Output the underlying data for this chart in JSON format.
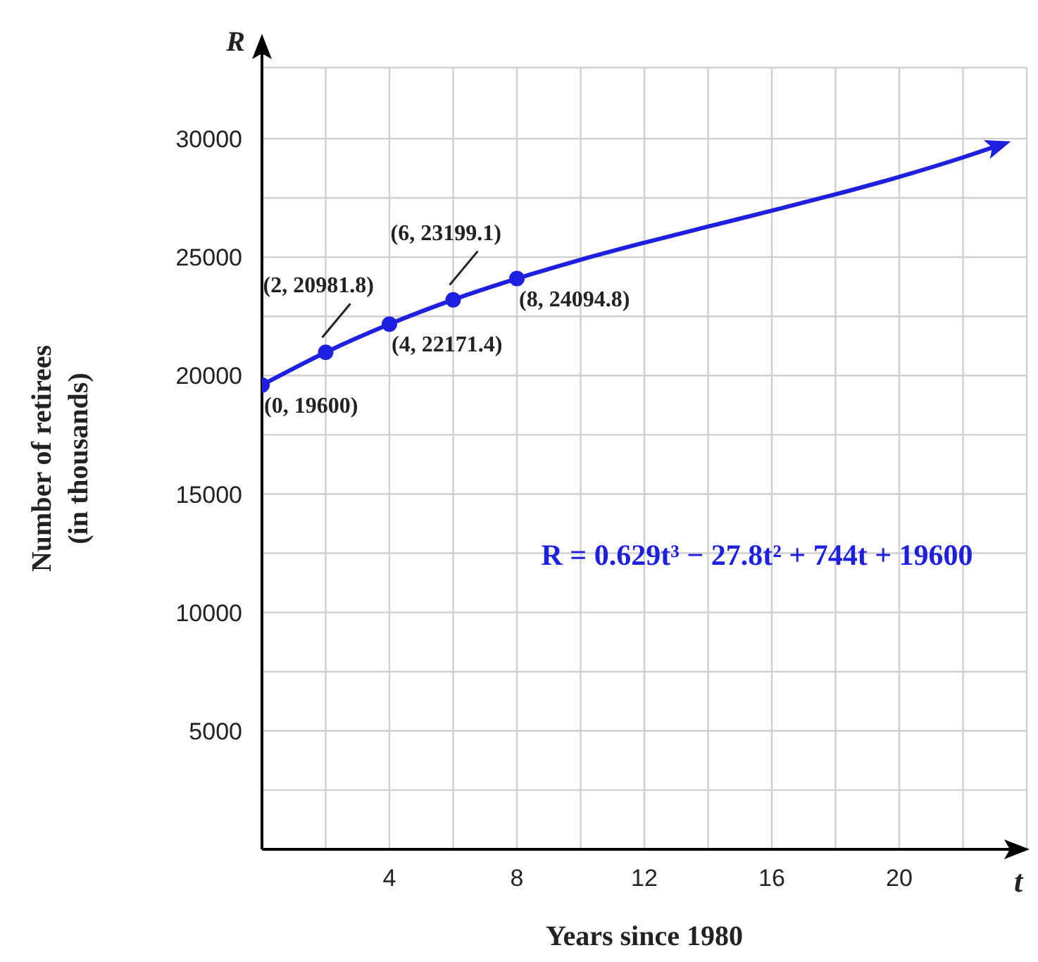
{
  "chart_data": {
    "type": "line",
    "xlabel": "Years since 1980",
    "ylabel": "Number of retirees\n(in thousands)",
    "xlim": [
      0,
      24
    ],
    "ylim": [
      0,
      33000
    ],
    "xticks": [
      {
        "value": 2,
        "label": null
      },
      4,
      {
        "value": 6,
        "label": null
      },
      8,
      {
        "value": 10,
        "label": null
      },
      12,
      {
        "value": 14,
        "label": null
      },
      16,
      {
        "value": 18,
        "label": null
      },
      20,
      {
        "value": 22,
        "label": null
      }
    ],
    "yticks": [
      {
        "value": 2500,
        "label": null
      },
      5000,
      {
        "value": 7500,
        "label": null
      },
      10000,
      {
        "value": 12500,
        "label": null
      },
      15000,
      {
        "value": 17500,
        "label": null
      },
      20000,
      {
        "value": 22500,
        "label": null
      },
      25000,
      {
        "value": 27500,
        "label": null
      },
      30000
    ],
    "grid": true,
    "legend": false,
    "series": [
      {
        "color": "#1f1fe0",
        "marker": "none",
        "x": [
          0,
          2,
          4,
          6,
          8,
          10,
          12,
          14,
          16,
          18,
          20,
          22,
          23
        ],
        "values": [
          19600,
          20980,
          22170,
          23200,
          24090,
          24890,
          25610,
          26290,
          26960,
          27650,
          28390,
          29210,
          29660
        ]
      },
      {
        "type": "scatter",
        "color": "#1f1fe0",
        "marker": "circle",
        "x": [
          0,
          2,
          4,
          6,
          8
        ],
        "values": [
          19600,
          20981.8,
          22171.4,
          23199.1,
          24094.8
        ],
        "value_labels": [
          "(0, 19600)",
          "(2, 20981.8)",
          "(4, 22171.4)",
          "(6, 23199.1)",
          "(8, 24094.8)"
        ]
      }
    ],
    "annotations": [
      "R",
      "t",
      "R = 0.629t³ − 27.8t² + 744t + 19600"
    ]
  }
}
